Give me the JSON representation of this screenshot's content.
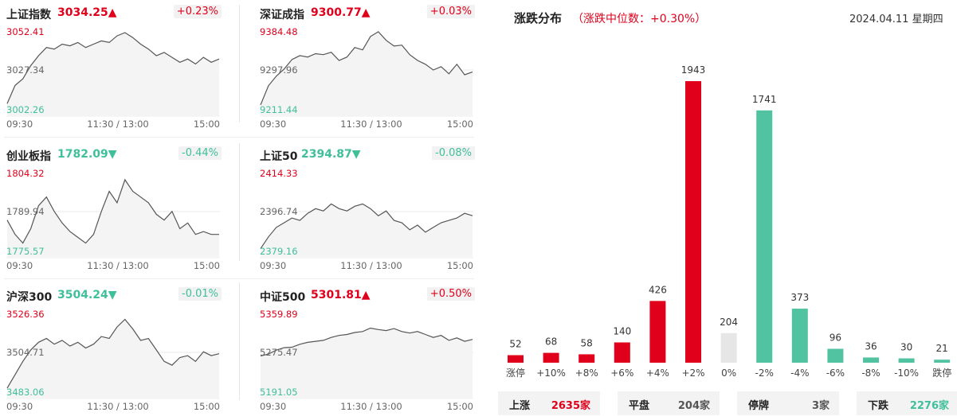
{
  "indices": [
    {
      "name": "上证指数",
      "price": "3034.25",
      "arrow": "▲",
      "change": "+0.23%",
      "dir": "up",
      "y_high": "3052.41",
      "y_mid": "3027.34",
      "y_low": "3002.26",
      "ymin": 3002.26,
      "ymax": 3052.41,
      "prev": 3027.34,
      "series": [
        3007,
        3018,
        3022,
        3030,
        3036,
        3041,
        3040,
        3043,
        3042,
        3044,
        3041,
        3043,
        3045,
        3044,
        3048,
        3050,
        3047,
        3043,
        3040,
        3036,
        3038,
        3035,
        3032,
        3034,
        3031,
        3035,
        3032,
        3034
      ]
    },
    {
      "name": "深证成指",
      "price": "9300.77",
      "arrow": "▲",
      "change": "+0.03%",
      "dir": "up",
      "y_high": "9384.48",
      "y_mid": "9297.96",
      "y_low": "9211.44",
      "ymin": 9211.44,
      "ymax": 9384.48,
      "prev": 9297.96,
      "series": [
        9225,
        9265,
        9285,
        9300,
        9320,
        9328,
        9325,
        9332,
        9330,
        9335,
        9318,
        9325,
        9345,
        9340,
        9368,
        9378,
        9360,
        9348,
        9350,
        9330,
        9318,
        9310,
        9298,
        9305,
        9290,
        9310,
        9288,
        9294
      ]
    },
    {
      "name": "创业板指",
      "price": "1782.09",
      "arrow": "▼",
      "change": "-0.44%",
      "dir": "down",
      "y_high": "1804.32",
      "y_mid": "1789.94",
      "y_low": "1775.57",
      "ymin": 1775.57,
      "ymax": 1804.32,
      "prev": 1789.94,
      "series": [
        1787,
        1782,
        1779,
        1784,
        1792,
        1795,
        1790,
        1786,
        1783,
        1781,
        1779,
        1782,
        1790,
        1797,
        1793,
        1801,
        1797,
        1795,
        1793,
        1789,
        1787,
        1790,
        1784,
        1786,
        1782,
        1783,
        1782,
        1782
      ]
    },
    {
      "name": "上证50",
      "price": "2394.87",
      "arrow": "▼",
      "change": "-0.08%",
      "dir": "down",
      "y_high": "2414.33",
      "y_mid": "2396.74",
      "y_low": "2379.16",
      "ymin": 2379.16,
      "ymax": 2414.33,
      "prev": 2396.74,
      "series": [
        2381,
        2386,
        2390,
        2392,
        2394,
        2393,
        2396,
        2398,
        2397,
        2400,
        2398,
        2397,
        2399,
        2400,
        2398,
        2395,
        2397,
        2393,
        2392,
        2389,
        2391,
        2388,
        2390,
        2392,
        2393,
        2394,
        2396,
        2395
      ]
    },
    {
      "name": "沪深300",
      "price": "3504.24",
      "arrow": "▼",
      "change": "-0.01%",
      "dir": "down",
      "y_high": "3526.36",
      "y_mid": "3504.71",
      "y_low": "3483.06",
      "ymin": 3483.06,
      "ymax": 3526.36,
      "prev": 3504.71,
      "series": [
        3486,
        3493,
        3500,
        3506,
        3510,
        3512,
        3509,
        3511,
        3508,
        3510,
        3507,
        3509,
        3513,
        3512,
        3518,
        3522,
        3517,
        3511,
        3512,
        3506,
        3500,
        3498,
        3502,
        3503,
        3500,
        3505,
        3503,
        3504
      ]
    },
    {
      "name": "中证500",
      "price": "5301.81",
      "arrow": "▲",
      "change": "+0.50%",
      "dir": "up",
      "y_high": "5359.89",
      "y_mid": "5275.47",
      "y_low": "5191.05",
      "ymin": 5191.05,
      "ymax": 5359.89,
      "prev": 5275.47,
      "series": [
        5268,
        5272,
        5280,
        5285,
        5286,
        5292,
        5296,
        5298,
        5300,
        5306,
        5310,
        5312,
        5316,
        5318,
        5325,
        5322,
        5320,
        5324,
        5318,
        5315,
        5318,
        5312,
        5306,
        5310,
        5300,
        5305,
        5298,
        5302
      ]
    }
  ],
  "time_labels": [
    "09:30",
    "11:30 / 13:00",
    "15:00"
  ],
  "distribution": {
    "title": "涨跌分布",
    "subtitle": "（涨跌中位数：+0.30%）",
    "date": "2024.04.11 星期四",
    "chart_data": {
      "type": "bar",
      "categories": [
        "涨停",
        "+10%",
        "+8%",
        "+6%",
        "+4%",
        "+2%",
        "0%",
        "-2%",
        "-4%",
        "-6%",
        "-8%",
        "-10%",
        "跌停"
      ],
      "values": [
        52,
        68,
        58,
        140,
        426,
        1943,
        204,
        1741,
        373,
        96,
        36,
        30,
        21
      ],
      "colors": [
        "#e0001b",
        "#e0001b",
        "#e0001b",
        "#e0001b",
        "#e0001b",
        "#e0001b",
        "#e6e6e6",
        "#52c3a1",
        "#52c3a1",
        "#52c3a1",
        "#52c3a1",
        "#52c3a1",
        "#52c3a1"
      ],
      "ylim": [
        0,
        1943
      ]
    },
    "summary": [
      {
        "label": "上涨",
        "value": "2635家",
        "color": "red"
      },
      {
        "label": "平盘",
        "value": "204家",
        "color": "gray"
      },
      {
        "label": "停牌",
        "value": "3家",
        "color": "gray"
      },
      {
        "label": "下跌",
        "value": "2276家",
        "color": "green"
      }
    ]
  },
  "colors": {
    "up": "#e0001b",
    "down": "#3fbf9a",
    "flat": "#e6e6e6",
    "line": "#555555"
  }
}
